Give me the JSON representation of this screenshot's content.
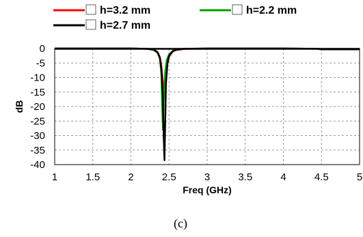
{
  "chart_data": {
    "type": "line",
    "title": "",
    "xlabel": "Freq (GHz)",
    "ylabel": "dB",
    "xlim": [
      1,
      5
    ],
    "ylim": [
      -40,
      0
    ],
    "x_ticks": [
      "1",
      "1.5",
      "2",
      "2.5",
      "3",
      "3.5",
      "4",
      "4.5",
      "5"
    ],
    "y_ticks": [
      "0",
      "-5",
      "-10",
      "-15",
      "-20",
      "-25",
      "-30",
      "-35",
      "-40"
    ],
    "grid": true,
    "legend_position": "top",
    "series": [
      {
        "name": "h=3.2 mm",
        "color": "#ff0000",
        "x": [
          1.0,
          2.0,
          2.2,
          2.3,
          2.35,
          2.38,
          2.4,
          2.42,
          2.43,
          2.44,
          2.45,
          2.47,
          2.5,
          2.55,
          2.6,
          2.7,
          3.0,
          4.0,
          4.45,
          4.5,
          5.0
        ],
        "y": [
          0,
          0,
          -0.1,
          -0.4,
          -1.2,
          -3.0,
          -6.0,
          -11.5,
          -14.5,
          -15.5,
          -13.0,
          -6.5,
          -2.8,
          -1.0,
          -0.5,
          -0.2,
          0,
          0,
          -0.1,
          -0.3,
          -0.3
        ]
      },
      {
        "name": "h=2.2 mm",
        "color": "#00a000",
        "x": [
          1.0,
          2.0,
          2.2,
          2.3,
          2.35,
          2.38,
          2.4,
          2.41,
          2.42,
          2.43,
          2.45,
          2.47,
          2.5,
          2.55,
          2.6,
          2.7,
          3.0,
          4.0,
          4.45,
          4.5,
          5.0
        ],
        "y": [
          0,
          0,
          -0.1,
          -0.5,
          -1.5,
          -3.5,
          -9.0,
          -20.0,
          -28.0,
          -18.0,
          -8.0,
          -4.0,
          -2.0,
          -0.8,
          -0.4,
          -0.1,
          0,
          0,
          -0.1,
          -0.3,
          -0.3
        ]
      },
      {
        "name": "h=2.7 mm",
        "color": "#000000",
        "x": [
          1.0,
          2.0,
          2.2,
          2.3,
          2.35,
          2.38,
          2.4,
          2.42,
          2.43,
          2.44,
          2.45,
          2.46,
          2.48,
          2.5,
          2.55,
          2.6,
          2.7,
          3.0,
          4.0,
          4.45,
          4.5,
          5.0
        ],
        "y": [
          0,
          0,
          -0.1,
          -0.4,
          -1.3,
          -3.2,
          -7.0,
          -17.0,
          -30.0,
          -38.5,
          -25.0,
          -12.0,
          -5.0,
          -2.5,
          -0.9,
          -0.4,
          -0.1,
          0,
          0,
          -0.1,
          -0.3,
          -0.3
        ]
      }
    ]
  },
  "caption": "(c)"
}
